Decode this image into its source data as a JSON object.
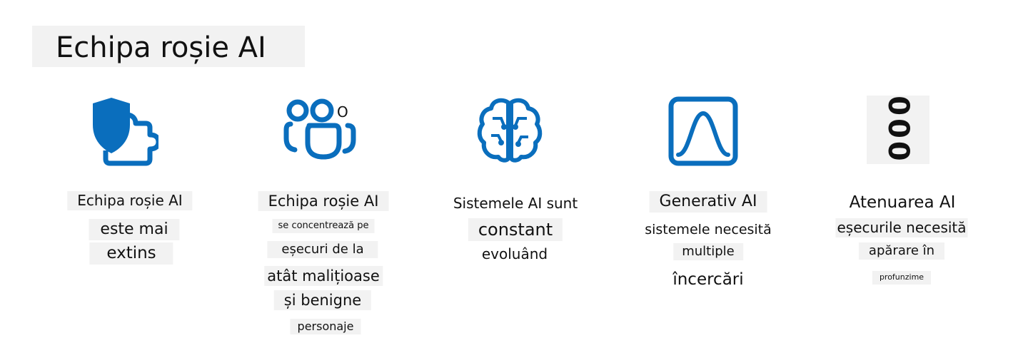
{
  "title": "Echipa roșie AI",
  "accent_color": "#0a6ebd",
  "columns": [
    {
      "icon": "shield-puzzle-icon",
      "lines": [
        "Echipa roșie AI",
        "este mai",
        "extins"
      ]
    },
    {
      "icon": "people-team-icon",
      "icon_extra": "O",
      "lines": [
        "Echipa roșie AI",
        "se concentrează pe",
        "eșecuri de la",
        "atât malițioase",
        "și benigne",
        "personaje"
      ]
    },
    {
      "icon": "brain-circuit-icon",
      "lines": [
        "Sistemele AI sunt",
        "constant",
        "evoluând"
      ]
    },
    {
      "icon": "bell-curve-chart-icon",
      "lines": [
        "Generativ AI",
        "sistemele necesită",
        "multiple",
        "încercări"
      ]
    },
    {
      "icon": "rotated-ooo-icon",
      "icon_text": "000",
      "lines": [
        "Atenuarea AI",
        "eșecurile necesită",
        "apărare în",
        "profunzime"
      ]
    }
  ]
}
